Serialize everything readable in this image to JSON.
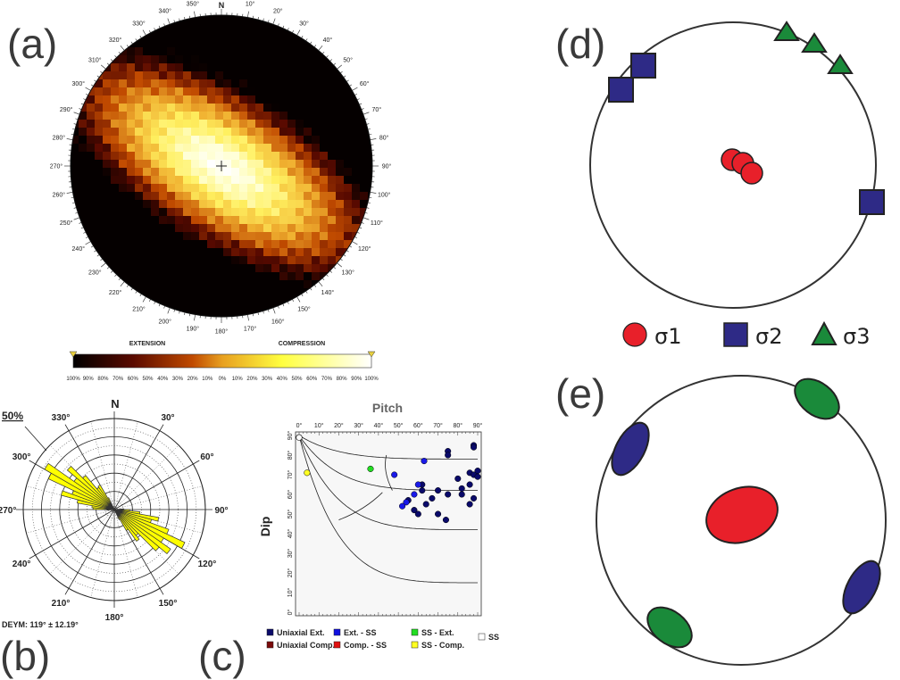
{
  "panels": {
    "a": "(a)",
    "b": "(b)",
    "c": "(c)",
    "d": "(d)",
    "e": "(e)"
  },
  "panel_a": {
    "north": "N",
    "azimuths": [
      "10°",
      "20°",
      "30°",
      "40°",
      "50°",
      "60°",
      "70°",
      "80°",
      "90°",
      "100°",
      "110°",
      "120°",
      "130°",
      "140°",
      "150°",
      "160°",
      "170°",
      "180°",
      "190°",
      "200°",
      "210°",
      "220°",
      "230°",
      "240°",
      "250°",
      "260°",
      "270°",
      "280°",
      "290°",
      "300°",
      "310°",
      "320°",
      "330°",
      "340°",
      "350°"
    ],
    "colorbar": {
      "left_label": "EXTENSION",
      "right_label": "COMPRESSION",
      "ticks": [
        "100%",
        "90%",
        "80%",
        "70%",
        "60%",
        "50%",
        "40%",
        "30%",
        "20%",
        "10%",
        "0%",
        "10%",
        "20%",
        "30%",
        "40%",
        "50%",
        "60%",
        "70%",
        "80%",
        "90%",
        "100%"
      ]
    }
  },
  "panel_b": {
    "north": "N",
    "scale": "50%",
    "angle_labels": [
      "30°",
      "60°",
      "90°",
      "120°",
      "150°",
      "180°",
      "210°",
      "240°",
      "270°",
      "300°",
      "330°"
    ],
    "caption": "DEYM: 119° ± 12.19°"
  },
  "panel_c": {
    "title": "Pitch",
    "y_label": "Dip",
    "x_ticks": [
      "0°",
      "10°",
      "20°",
      "30°",
      "40°",
      "50°",
      "60°",
      "70°",
      "80°",
      "90°"
    ],
    "y_ticks": [
      "90°",
      "80°",
      "70°",
      "60°",
      "50°",
      "40°",
      "30°",
      "20°",
      "10°",
      "0°"
    ],
    "legend": [
      {
        "label": "Uniaxial Ext.",
        "color": "#0a0a6a"
      },
      {
        "label": "Ext. - SS",
        "color": "#1010e0"
      },
      {
        "label": "SS - Ext.",
        "color": "#22dd22"
      },
      {
        "label": "SS",
        "color": "#ffffff"
      },
      {
        "label": "Uniaxial Comp.",
        "color": "#7a0a0a"
      },
      {
        "label": "Comp. - SS",
        "color": "#e01010"
      },
      {
        "label": "SS - Comp.",
        "color": "#ffff22"
      }
    ]
  },
  "panel_d": {
    "legend": [
      {
        "symbol": "circle",
        "label": "σ1",
        "color": "#e8202a"
      },
      {
        "symbol": "square",
        "label": "σ2",
        "color": "#2e2a86"
      },
      {
        "symbol": "triangle",
        "label": "σ3",
        "color": "#1a8a3a"
      }
    ]
  },
  "colors": {
    "sigma1": "#e8202a",
    "sigma2": "#2e2a86",
    "sigma3": "#1a8a3a",
    "rose": "#ffff00"
  }
}
